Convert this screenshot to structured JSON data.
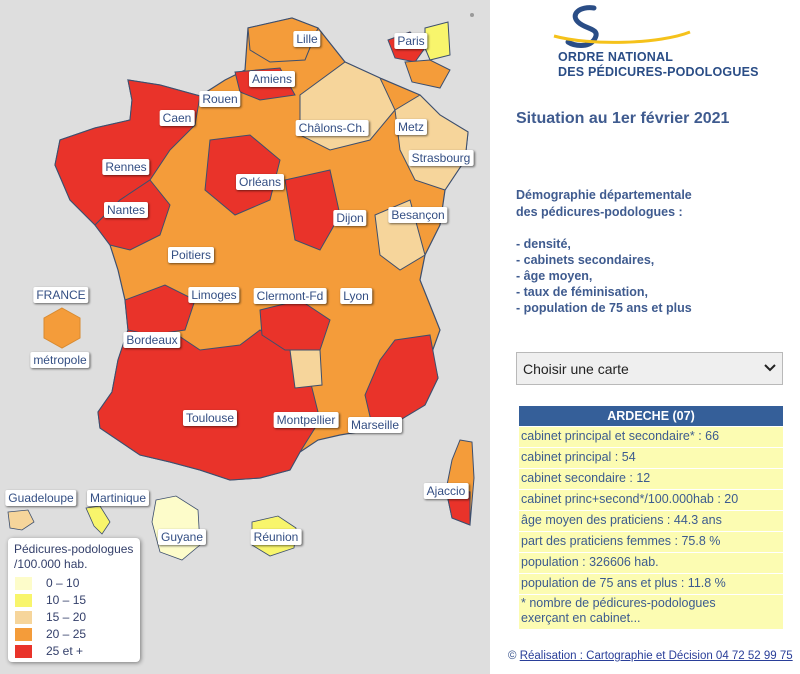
{
  "colors": {
    "map_background": "#dedede",
    "accent_blue": "#355f99",
    "info_row_bg": "#fcfcb2",
    "legend": [
      "#fdfcca",
      "#f8f56c",
      "#f6d59b",
      "#f49c3a",
      "#e9332a"
    ]
  },
  "map": {
    "cities": [
      "Lille",
      "Paris",
      "Amiens",
      "Rouen",
      "Caen",
      "Châlons-Ch.",
      "Metz",
      "Strasbourg",
      "Rennes",
      "Orléans",
      "Nantes",
      "Dijon",
      "Besançon",
      "Poitiers",
      "Limoges",
      "Clermont-Fd",
      "Lyon",
      "Bordeaux",
      "Toulouse",
      "Montpellier",
      "Marseille",
      "Ajaccio"
    ],
    "france_label": "FRANCE",
    "metropole_label": "métropole",
    "overseas": [
      "Guadeloupe",
      "Martinique",
      "Guyane",
      "Réunion"
    ]
  },
  "legend": {
    "title_line1": "Pédicures-podologues",
    "title_line2": "/100.000 hab.",
    "items": [
      "0 – 10",
      "10 – 15",
      "15 – 20",
      "20 – 25",
      "25 et +"
    ]
  },
  "logo": {
    "icon": "logo-s-icon",
    "line1": "ORDRE NATIONAL",
    "line2": "DES PÉDICURES-PODOLOGUES"
  },
  "situation": "Situation au 1er février 2021",
  "description": {
    "line1": "Démographie départementale",
    "line2": "des pédicures-podologues :",
    "bullets": [
      "- densité,",
      "- cabinets secondaires,",
      "- âge moyen,",
      "- taux de féminisation,",
      "- population de 75 ans et plus"
    ]
  },
  "select": {
    "value": "Choisir une carte",
    "icon": "chevron-down-icon"
  },
  "info": {
    "header": "ARDECHE (07)",
    "rows": [
      "cabinet principal et secondaire* : 66",
      "cabinet principal : 54",
      "cabinet secondaire : 12",
      "cabinet princ+second*/100.000hab : 20",
      "âge moyen des praticiens : 44.3 ans",
      "part des praticiens femmes : 75.8 %",
      "population : 326606 hab.",
      "population de 75 ans et plus : 11.8 %"
    ],
    "note_line1": "* nombre de pédicures-podologues",
    "note_line2": "exerçant en cabinet..."
  },
  "credit": {
    "prefix": "©",
    "link": "Réalisation : Cartographie et Décision 04 72 52 99 75"
  }
}
